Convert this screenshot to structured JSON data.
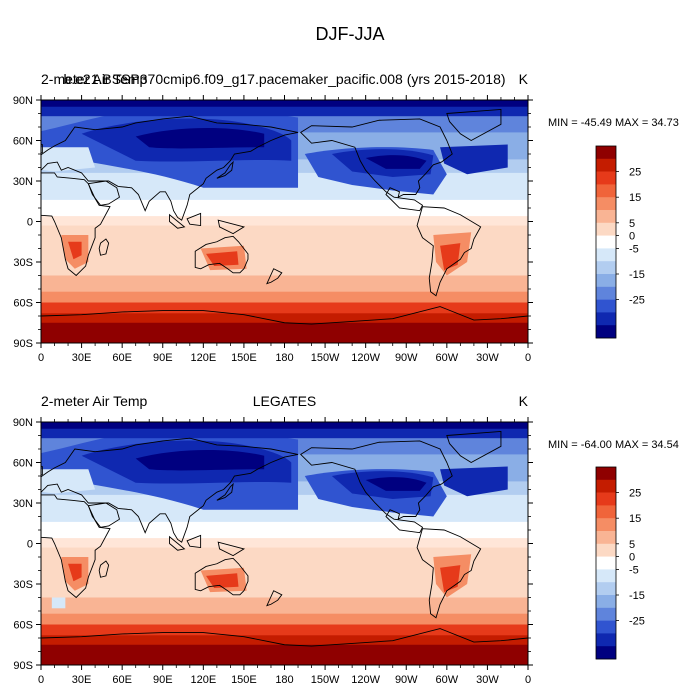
{
  "figure": {
    "title": "DJF-JJA"
  },
  "colors": {
    "ocean_warm_band": "#f9d7c4",
    "land_polar": "#ffffff",
    "coast": "#000000"
  },
  "chart_data": [
    {
      "type": "heatmap",
      "left_title": "2-meter Air Temp",
      "center_title": "b.e21.BSSP370cmip6.f09_g17.pacemaker_pacific.008 (yrs 2015-2018)",
      "units": "K",
      "stats_label": "MIN = -45.49 MAX =  34.73",
      "min": -45.49,
      "max": 34.73,
      "lon_ticks": [
        "0",
        "30E",
        "60E",
        "90E",
        "120E",
        "150E",
        "180",
        "150W",
        "120W",
        "90W",
        "60W",
        "30W",
        "0"
      ],
      "lat_ticks": [
        "90N",
        "60N",
        "30N",
        "0",
        "30S",
        "60S",
        "90S"
      ],
      "colorbar_levels": [
        -30,
        -25,
        -20,
        -15,
        -10,
        -5,
        0,
        5,
        10,
        15,
        20,
        25,
        30
      ],
      "colorbar_labels": [
        "25",
        "15",
        "5",
        "0",
        "-5",
        "-15",
        "-25"
      ],
      "colorbar_colors": [
        "#8f0000",
        "#c41c00",
        "#e63a1a",
        "#f0643a",
        "#f58d64",
        "#f9b494",
        "#fcd9c4",
        "#ffffff",
        "#d6e8f9",
        "#b2cdf0",
        "#8aaee6",
        "#5f84dc",
        "#3054d0",
        "#0f28b0",
        "#000080"
      ]
    },
    {
      "type": "heatmap",
      "left_title": "2-meter Air Temp",
      "center_title": "LEGATES",
      "units": "K",
      "stats_label": "MIN = -64.00 MAX =  34.54",
      "min": -64.0,
      "max": 34.54,
      "lon_ticks": [
        "0",
        "30E",
        "60E",
        "90E",
        "120E",
        "150E",
        "180",
        "150W",
        "120W",
        "90W",
        "60W",
        "30W",
        "0"
      ],
      "lat_ticks": [
        "90N",
        "60N",
        "30N",
        "0",
        "30S",
        "60S",
        "90S"
      ],
      "colorbar_levels": [
        -30,
        -25,
        -20,
        -15,
        -10,
        -5,
        0,
        5,
        10,
        15,
        20,
        25,
        30
      ],
      "colorbar_labels": [
        "25",
        "15",
        "5",
        "0",
        "-5",
        "-15",
        "-25"
      ],
      "colorbar_colors": [
        "#8f0000",
        "#c41c00",
        "#e63a1a",
        "#f0643a",
        "#f58d64",
        "#f9b494",
        "#fcd9c4",
        "#ffffff",
        "#d6e8f9",
        "#b2cdf0",
        "#8aaee6",
        "#5f84dc",
        "#3054d0",
        "#0f28b0",
        "#000080"
      ]
    }
  ]
}
